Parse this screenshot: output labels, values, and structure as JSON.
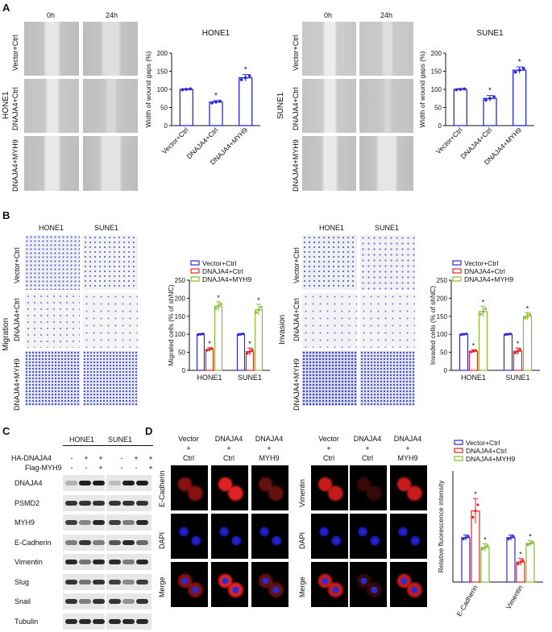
{
  "panels": {
    "A": {
      "letter": "A",
      "row_label": "HONE1",
      "row_label_2": "SUNE1",
      "time_labels": [
        "0h",
        "24h"
      ],
      "group_labels": [
        "Vector+Ctrl",
        "DNAJA4+Ctrl",
        "DNAJA4+MYH9"
      ]
    },
    "B": {
      "letter": "B",
      "row_label_migration": "Migration",
      "row_label_invasion": "Invasion",
      "col_labels": [
        "HONE1",
        "SUNE1"
      ],
      "group_labels": [
        "Vector+Ctrl",
        "DNAJA4+Ctrl",
        "DNAJA4+MYH9"
      ]
    },
    "C": {
      "letter": "C",
      "col_labels": [
        "HONE1",
        "SUNE1"
      ],
      "treat_rows": [
        {
          "label": "HA-DNAJA4",
          "signs": [
            "-",
            "+",
            "+",
            "-",
            "+",
            "+"
          ]
        },
        {
          "label": "Flag-MYH9",
          "signs": [
            "-",
            "-",
            "+",
            "-",
            "-",
            "+"
          ]
        }
      ],
      "proteins": [
        "DNAJA4",
        "PSMD2",
        "MYH9",
        "E-Cadherin",
        "Vimentin",
        "Slug",
        "Snail",
        "Tubulin"
      ]
    },
    "D": {
      "letter": "D",
      "col_labels": [
        [
          "Vector",
          "+",
          "Ctrl"
        ],
        [
          "DNAJA4",
          "+",
          "Ctrl"
        ],
        [
          "DNAJA4",
          "+",
          "MYH9"
        ]
      ],
      "rows_left": [
        "E-Cadherin",
        "DAPI",
        "Merge"
      ],
      "rows_right": [
        "Vimentin",
        "DAPI",
        "Merge"
      ]
    }
  },
  "chart_data": [
    {
      "type": "bar",
      "title": "HONE1",
      "ylabel": "Width of wound gaps (%)",
      "categories": [
        "Vector+Ctrl",
        "DNAJA4+Ctrl",
        "DNAJA4+MYH9"
      ],
      "values": [
        100,
        65,
        132
      ],
      "errors": [
        2,
        4,
        9
      ],
      "significance": [
        "",
        "*",
        "*"
      ],
      "ylim": [
        0,
        200
      ],
      "yticks": [
        "0",
        "50",
        "100",
        "150",
        "200"
      ],
      "color": "#2d2bd6"
    },
    {
      "type": "bar",
      "title": "SUNE1",
      "ylabel": "Width of wound gaps (%)",
      "categories": [
        "Vector+Ctrl",
        "DNAJA4+Ctrl",
        "DNAJA4+MYH9"
      ],
      "values": [
        100,
        75,
        153
      ],
      "errors": [
        2,
        8,
        9
      ],
      "significance": [
        "",
        "*",
        "*"
      ],
      "ylim": [
        0,
        200
      ],
      "yticks": [
        "0",
        "50",
        "100",
        "150",
        "200"
      ],
      "color": "#2d2bd6"
    },
    {
      "type": "bar",
      "ylabel": "Migrated cells (% of shNC)",
      "categories": [
        "HONE1",
        "SUNE1"
      ],
      "series": [
        {
          "name": "Vector+Ctrl",
          "values": [
            100,
            100
          ],
          "errors": [
            2,
            2
          ],
          "color": "#2d2bd6"
        },
        {
          "name": "DNAJA4+Ctrl",
          "values": [
            58,
            52
          ],
          "errors": [
            5,
            10
          ],
          "color": "#e8232b"
        },
        {
          "name": "DNAJA4+MYH9",
          "values": [
            178,
            168
          ],
          "errors": [
            12,
            15
          ],
          "color": "#86bf2f"
        }
      ],
      "significance": [
        [
          "",
          "*",
          "*"
        ],
        [
          "",
          "*",
          "*"
        ]
      ],
      "ylim": [
        0,
        250
      ],
      "yticks": [
        "0",
        "50",
        "100",
        "150",
        "200",
        "250"
      ],
      "legend": "top"
    },
    {
      "type": "bar",
      "ylabel": "Invaded cells (% of shNC)",
      "categories": [
        "HONE1",
        "SUNE1"
      ],
      "series": [
        {
          "name": "Vector+Ctrl",
          "values": [
            100,
            100
          ],
          "errors": [
            2,
            2
          ],
          "color": "#2d2bd6"
        },
        {
          "name": "DNAJA4+Ctrl",
          "values": [
            53,
            53
          ],
          "errors": [
            4,
            9
          ],
          "color": "#e8232b"
        },
        {
          "name": "DNAJA4+MYH9",
          "values": [
            163,
            150
          ],
          "errors": [
            15,
            10
          ],
          "color": "#86bf2f"
        }
      ],
      "significance": [
        [
          "",
          "*",
          "*"
        ],
        [
          "",
          "*",
          "*"
        ]
      ],
      "ylim": [
        0,
        250
      ],
      "yticks": [
        "0",
        "50",
        "100",
        "150",
        "200",
        "250"
      ],
      "legend": "top"
    },
    {
      "type": "bar",
      "ylabel": "Relative fluorescence intensity",
      "categories": [
        "E-Cadherin",
        "Vimentin"
      ],
      "series": [
        {
          "name": "Vector+Ctrl",
          "values": [
            1.0,
            1.0
          ],
          "errors": [
            0.06,
            0.06
          ],
          "color": "#2d2bd6"
        },
        {
          "name": "DNAJA4+Ctrl",
          "values": [
            1.6,
            0.45
          ],
          "errors": [
            0.28,
            0.08
          ],
          "color": "#e8232b"
        },
        {
          "name": "DNAJA4+MYH9",
          "values": [
            0.78,
            0.87
          ],
          "errors": [
            0.08,
            0.06
          ],
          "color": "#86bf2f"
        }
      ],
      "significance": [
        [
          "",
          "*",
          "*"
        ],
        [
          "",
          "*",
          "*"
        ]
      ],
      "ylim": [
        0,
        2.5
      ],
      "yticks": [],
      "legend": "top"
    }
  ]
}
